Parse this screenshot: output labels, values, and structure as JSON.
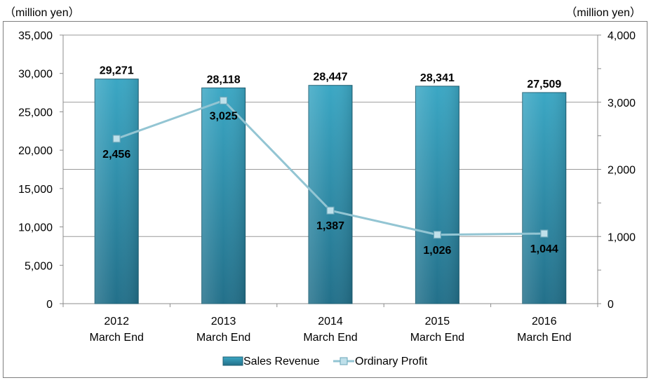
{
  "units": {
    "left": "（million yen）",
    "right": "（million yen）"
  },
  "chart_data": {
    "type": "bar",
    "categories": [
      [
        "2012",
        "March End"
      ],
      [
        "2013",
        "March End"
      ],
      [
        "2014",
        "March End"
      ],
      [
        "2015",
        "March End"
      ],
      [
        "2016",
        "March End"
      ]
    ],
    "series": [
      {
        "name": "Sales Revenue",
        "type": "bar",
        "axis": "left",
        "values": [
          29271,
          28118,
          28447,
          28341,
          27509
        ],
        "labels": [
          "29,271",
          "28,118",
          "28,447",
          "28,341",
          "27,509"
        ],
        "color": "#2f97b3"
      },
      {
        "name": "Ordinary Profit",
        "type": "line",
        "axis": "right",
        "values": [
          2456,
          3025,
          1387,
          1026,
          1044
        ],
        "labels": [
          "2,456",
          "3,025",
          "1,387",
          "1,026",
          "1,044"
        ],
        "color": "#93c5d3"
      }
    ],
    "y_left": {
      "ylim": [
        0,
        35000
      ],
      "ticks": [
        "0",
        "5,000",
        "10,000",
        "15,000",
        "20,000",
        "25,000",
        "30,000",
        "35,000"
      ]
    },
    "y_right": {
      "ylim": [
        0,
        4000
      ],
      "ticks": [
        "0",
        "1,000",
        "2,000",
        "3,000",
        "4,000"
      ]
    },
    "gridlines": true,
    "legend_position": "bottom"
  }
}
